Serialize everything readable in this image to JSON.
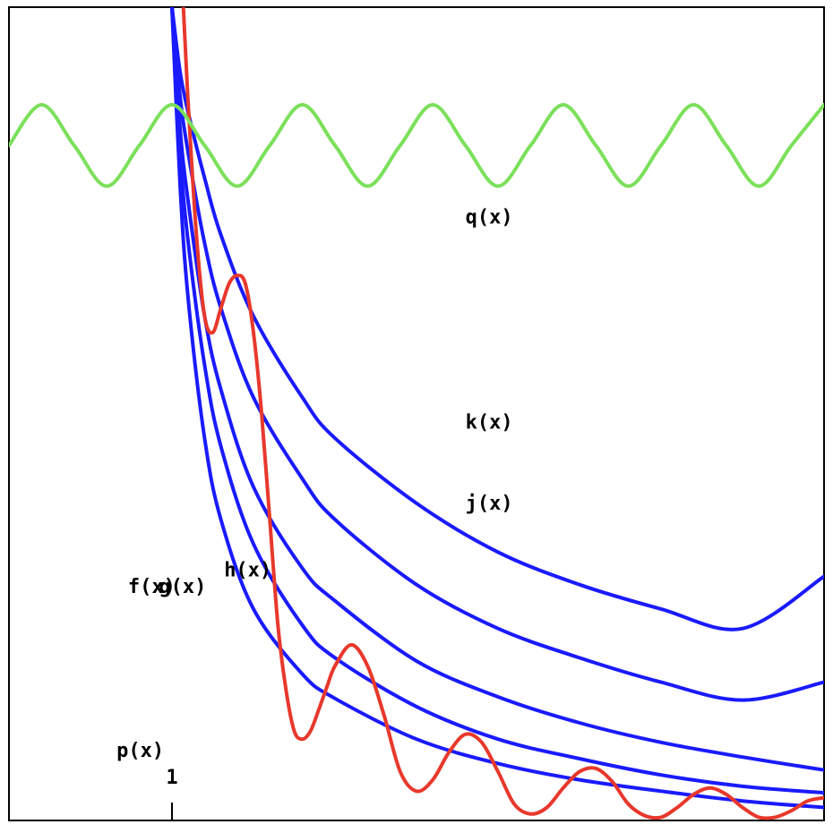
{
  "chart_data": {
    "type": "line",
    "title": "",
    "xlabel": "",
    "ylabel": "",
    "xlim": [
      0,
      5
    ],
    "ylim": [
      0,
      5
    ],
    "x_ticks": [
      {
        "value": 1,
        "label": "1"
      }
    ],
    "grid": false,
    "legend": "none",
    "colors": {
      "frame": "#000000",
      "blue": "#1a1aff",
      "red": "#e8382c",
      "green": "#7be05a"
    },
    "series": [
      {
        "name": "f(x)",
        "color": "#1a1aff",
        "x": [
          1.0,
          1.05,
          1.1,
          1.2,
          1.3,
          1.5,
          1.8,
          2.0,
          2.5,
          3.0,
          3.5,
          4.0,
          4.5,
          5.0
        ],
        "y": [
          5.0,
          3.9,
          3.2,
          2.35,
          1.85,
          1.3,
          0.9,
          0.75,
          0.5,
          0.35,
          0.25,
          0.18,
          0.12,
          0.08
        ]
      },
      {
        "name": "g(x)",
        "color": "#1a1aff",
        "x": [
          1.0,
          1.05,
          1.1,
          1.2,
          1.3,
          1.5,
          1.8,
          2.0,
          2.5,
          3.0,
          3.5,
          4.0,
          4.5,
          5.0
        ],
        "y": [
          5.0,
          4.1,
          3.55,
          2.8,
          2.3,
          1.7,
          1.2,
          1.0,
          0.7,
          0.5,
          0.38,
          0.28,
          0.21,
          0.17
        ]
      },
      {
        "name": "h(x)",
        "color": "#1a1aff",
        "x": [
          1.0,
          1.05,
          1.1,
          1.2,
          1.3,
          1.5,
          1.8,
          2.0,
          2.5,
          3.0,
          3.5,
          4.0,
          4.5,
          5.0
        ],
        "y": [
          5.0,
          4.25,
          3.8,
          3.1,
          2.65,
          2.05,
          1.55,
          1.35,
          0.98,
          0.76,
          0.6,
          0.48,
          0.39,
          0.31
        ]
      },
      {
        "name": "j(x)",
        "color": "#1a1aff",
        "x": [
          1.0,
          1.05,
          1.1,
          1.2,
          1.3,
          1.5,
          1.8,
          2.0,
          2.5,
          3.0,
          3.5,
          4.0,
          4.5,
          5.0
        ],
        "y": [
          5.0,
          4.45,
          4.1,
          3.55,
          3.15,
          2.6,
          2.1,
          1.85,
          1.45,
          1.18,
          1.0,
          0.85,
          0.74,
          0.85
        ]
      },
      {
        "name": "k(x)",
        "color": "#1a1aff",
        "x": [
          1.0,
          1.05,
          1.1,
          1.2,
          1.3,
          1.5,
          1.8,
          2.0,
          2.5,
          3.0,
          3.5,
          4.0,
          4.5,
          5.0
        ],
        "y": [
          5.0,
          4.6,
          4.35,
          3.95,
          3.6,
          3.1,
          2.6,
          2.35,
          1.95,
          1.65,
          1.45,
          1.3,
          1.18,
          1.5
        ]
      },
      {
        "name": "p(x)",
        "color": "#e8382c",
        "x": [
          1.07,
          1.1,
          1.15,
          1.2,
          1.25,
          1.3,
          1.35,
          1.4,
          1.45,
          1.5,
          1.55,
          1.6,
          1.65,
          1.7,
          1.75,
          1.8,
          1.85,
          1.9,
          1.95,
          2.0,
          2.1,
          2.2,
          2.3,
          2.4,
          2.5,
          2.6,
          2.7,
          2.8,
          2.9,
          3.0,
          3.1,
          3.2,
          3.3,
          3.4,
          3.5,
          3.6,
          3.7,
          3.8,
          3.9,
          4.0,
          4.1,
          4.2,
          4.3,
          4.4,
          4.5,
          4.6,
          4.7,
          4.8,
          4.9,
          5.0
        ],
        "y": [
          5.0,
          4.4,
          3.6,
          3.1,
          3.0,
          3.15,
          3.3,
          3.35,
          3.3,
          3.0,
          2.5,
          1.85,
          1.2,
          0.8,
          0.55,
          0.5,
          0.55,
          0.68,
          0.82,
          0.95,
          1.08,
          0.95,
          0.65,
          0.3,
          0.18,
          0.25,
          0.42,
          0.53,
          0.48,
          0.3,
          0.1,
          0.04,
          0.08,
          0.2,
          0.3,
          0.32,
          0.24,
          0.1,
          0.03,
          0.02,
          0.08,
          0.16,
          0.2,
          0.16,
          0.08,
          0.02,
          0.02,
          0.06,
          0.12,
          0.14
        ]
      },
      {
        "name": "q(x)",
        "color": "#7be05a",
        "x": [
          0.0,
          0.2,
          0.4,
          0.6,
          0.8,
          1.0,
          1.2,
          1.4,
          1.6,
          1.8,
          2.0,
          2.2,
          2.4,
          2.6,
          2.8,
          3.0,
          3.2,
          3.4,
          3.6,
          3.8,
          4.0,
          4.2,
          4.4,
          4.6,
          4.8,
          5.0
        ],
        "y": [
          4.15,
          4.4,
          4.15,
          3.9,
          4.15,
          4.4,
          4.15,
          3.9,
          4.15,
          4.4,
          4.15,
          3.9,
          4.15,
          4.4,
          4.15,
          3.9,
          4.15,
          4.4,
          4.15,
          3.9,
          4.15,
          4.4,
          4.15,
          3.9,
          4.15,
          4.4
        ]
      }
    ],
    "annotations": [
      {
        "text": "q(x)",
        "x": 2.8,
        "y": 3.67
      },
      {
        "text": "k(x)",
        "x": 2.8,
        "y": 2.41
      },
      {
        "text": "j(x)",
        "x": 2.8,
        "y": 1.91
      },
      {
        "text": "h(x)",
        "x": 1.32,
        "y": 1.5
      },
      {
        "text": "f(x)",
        "x": 0.73,
        "y": 1.4
      },
      {
        "text": "g(x)",
        "x": 0.92,
        "y": 1.4
      },
      {
        "text": "p(x)",
        "x": 0.66,
        "y": 0.39
      }
    ]
  }
}
